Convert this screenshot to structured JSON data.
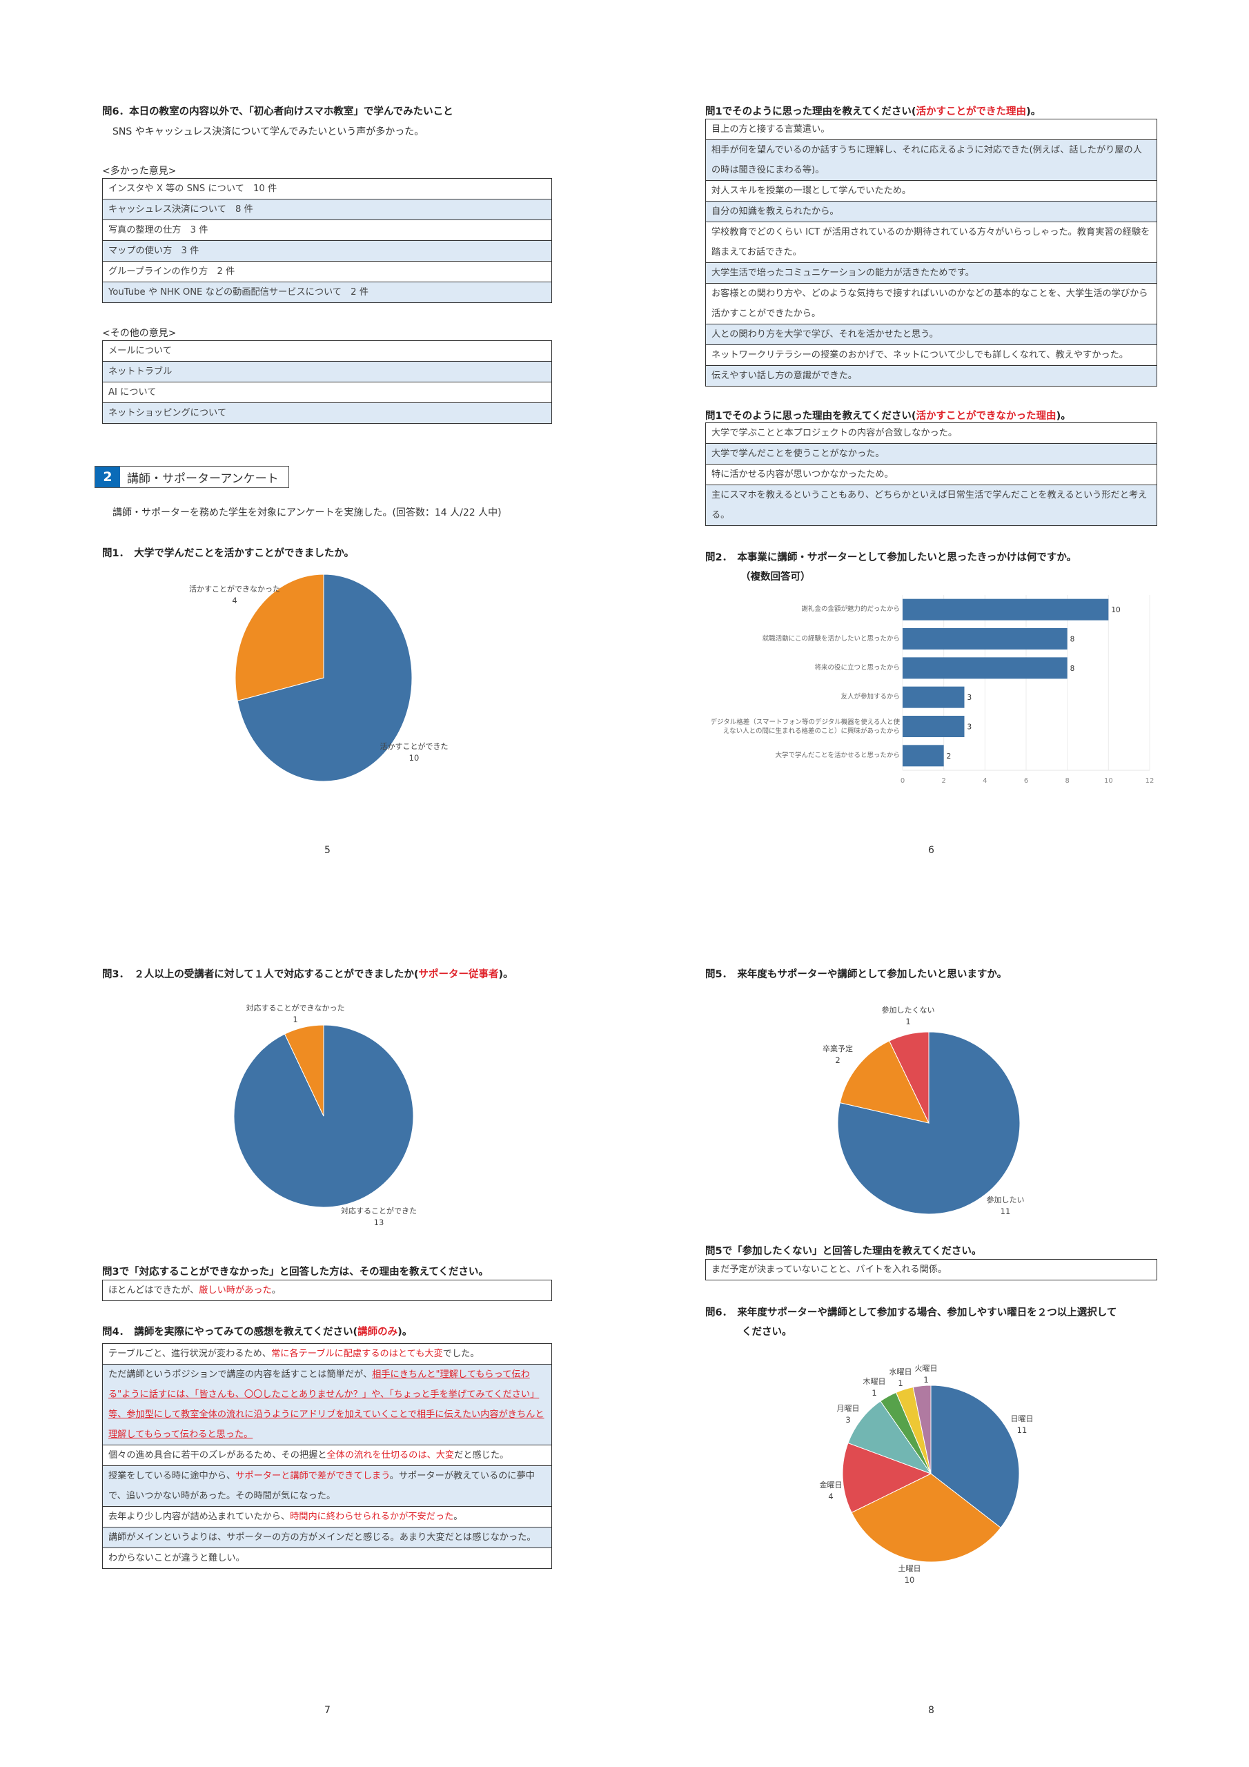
{
  "page5": {
    "q6_title": "問6．本日の教室の内容以外で、「初心者向けスマホ教室」で学んでみたいこと",
    "q6_summary": "SNS やキャッシュレス決済について学んでみたいという声が多かった。",
    "many_label": "<多かった意見>",
    "many": [
      "インスタや X 等の SNS について　10 件",
      "キャッシュレス決済について　8 件",
      "写真の整理の仕方　3 件",
      "マップの使い方　3 件",
      "グループラインの作り方　2 件",
      "YouTube や NHK ONE などの動画配信サービスについて　2 件"
    ],
    "other_label": "<その他の意見>",
    "other": [
      "メールについて",
      "ネットトラブル",
      "AI について",
      "ネットショッピングについて"
    ],
    "section": {
      "number": "2",
      "title": "講師・サポーターアンケート"
    },
    "intro": "講師・サポーターを務めた学生を対象にアンケートを実施した。(回答数：14 人/22 人中)",
    "q1_title": "問1．　大学で学んだことを活かすことができましたか。",
    "page_number": "5"
  },
  "page6": {
    "yes_title": [
      {
        "t": "問1でそのように思った理由を教えてください("
      },
      {
        "t": "活かすことができた理由",
        "s": "r"
      },
      {
        "t": ")。"
      }
    ],
    "yes_rows": [
      "目上の方と接する言葉遣い。",
      "相手が何を望んでいるのか話すうちに理解し、それに応えるように対応できた(例えば、話したがり屋の人の時は聞き役にまわる等)。",
      "対人スキルを授業の一環として学んでいたため。",
      "自分の知識を教えられたから。",
      "学校教育でどのくらい ICT が活用されているのか期待されている方々がいらっしゃった。教育実習の経験を踏まえてお話できた。",
      "大学生活で培ったコミュニケーションの能力が活きたためです。",
      "お客様との関わり方や、どのような気持ちで接すればいいのかなどの基本的なことを、大学生活の学びから活かすことができたから。",
      "人との関わり方を大学で学び、それを活かせたと思う。",
      "ネットワークリテラシーの授業のおかげで、ネットについて少しでも詳しくなれて、教えやすかった。",
      "伝えやすい話し方の意識ができた。"
    ],
    "no_title": [
      {
        "t": "問1でそのように思った理由を教えてください("
      },
      {
        "t": "活かすことができなかった理由",
        "s": "r"
      },
      {
        "t": ")。"
      }
    ],
    "no_rows": [
      "大学で学ぶことと本プロジェクトの内容が合致しなかった。",
      "大学で学んだことを使うことがなかった。",
      "特に活かせる内容が思いつかなかったため。",
      "主にスマホを教えるということもあり、どちらかといえば日常生活で学んだことを教えるという形だと考える。"
    ],
    "q2_title": "問2．　本事業に講師・サポーターとして参加したいと思ったきっかけは何ですか。",
    "q2_note": "（複数回答可）",
    "page_number": "6"
  },
  "page7": {
    "q3_title": [
      {
        "t": "問3．　２人以上の受講者に対して１人で対応することができましたか("
      },
      {
        "t": "サポーター従事者",
        "s": "r"
      },
      {
        "t": ")。"
      }
    ],
    "q3_reason_title": "問3で「対応することができなかった」と回答した方は、その理由を教えてください。",
    "q3_reason_rows": [
      [
        {
          "t": "ほとんどはできたが、"
        },
        {
          "t": "厳しい時があった",
          "s": "r"
        },
        {
          "t": "。"
        }
      ]
    ],
    "q4_title": [
      {
        "t": "問4．　講師を実際にやってみての感想を教えてください("
      },
      {
        "t": "講師のみ",
        "s": "r"
      },
      {
        "t": ")。"
      }
    ],
    "q4_rows": [
      [
        {
          "t": "テーブルごと、進行状況が変わるため、"
        },
        {
          "t": "常に各テーブルに配慮するのはとても大変",
          "s": "r"
        },
        {
          "t": "でした。"
        }
      ],
      [
        {
          "t": "ただ講師というポジションで講座の内容を話すことは簡単だが、"
        },
        {
          "t": "相手にきちんと\"理解してもらって伝わる\"ように話すには、「皆さんも、〇〇したことありませんか？」や、「ちょっと手を挙げてみてください」等、参加型にして教室全体の流れに沿うようにアドリブを加えていくことで相手に伝えたい内容がきちんと理解してもらって伝わると思った。",
          "s": "ru"
        }
      ],
      [
        {
          "t": "個々の進め具合に若干のズレがあるため、その把握と"
        },
        {
          "t": "全体の流れを仕切るのは、大変",
          "s": "r"
        },
        {
          "t": "だと感じた。"
        }
      ],
      [
        {
          "t": "授業をしている時に途中から、"
        },
        {
          "t": "サポーターと講師で差ができてしまう",
          "s": "r"
        },
        {
          "t": "。サポーターが教えているのに夢中で、追いつかない時があった。その時間が気になった。"
        }
      ],
      [
        {
          "t": "去年より少し内容が詰め込まれていたから、"
        },
        {
          "t": "時間内に終わらせられるかが不安だった",
          "s": "r"
        },
        {
          "t": "。"
        }
      ],
      [
        {
          "t": "講師がメインというよりは、サポーターの方の方がメインだと感じる。あまり大変だとは感じなかった。"
        }
      ],
      [
        {
          "t": "わからないことが違うと難しい。"
        }
      ]
    ],
    "page_number": "7"
  },
  "page8": {
    "q5_title": "問5．　来年度もサポーターや講師として参加したいと思いますか。",
    "q5_reason_title": "問5で「参加したくない」と回答した理由を教えてください。",
    "q5_reason_rows": [
      "まだ予定が決まっていないことと、バイトを入れる関係。"
    ],
    "q6_title_line1": "問6．　来年度サポーターや講師として参加する場合、参加しやすい曜日を２つ以上選択して",
    "q6_title_line2": "ください。",
    "page_number": "8"
  },
  "colors": {
    "blue": "#3f73a6",
    "orange": "#ef8c22",
    "red": "#e04b50",
    "teal": "#72b6b2",
    "green": "#57a24b",
    "yellow": "#edc835",
    "purple": "#b07aa1",
    "table_alt": "#dde9f5",
    "accent_red": "#e0242c"
  },
  "chart_data": [
    {
      "id": "q1",
      "type": "pie",
      "title": "問1．大学で学んだことを活かすことができましたか。",
      "categories": [
        "活かすことができた",
        "活かすことができなかった"
      ],
      "values": [
        10,
        4
      ],
      "colors": [
        "#3f73a6",
        "#ef8c22"
      ]
    },
    {
      "id": "q2",
      "type": "bar",
      "orientation": "horizontal",
      "title": "問2．本事業に講師・サポーターとして参加したいと思ったきっかけは何ですか。（複数回答可）",
      "categories": [
        "謝礼金の金額が魅力的だったから",
        "就職活動にこの経験を活かしたいと思ったから",
        "将来の役に立つと思ったから",
        "友人が参加するから",
        "デジタル格差（スマートフォン等のデジタル機器を使える人と使えない人との間に生まれる格差のこと）に興味があったから",
        "大学で学んだことを活かせると思ったから"
      ],
      "values": [
        10,
        8,
        8,
        3,
        3,
        2
      ],
      "xlim": [
        0,
        12
      ],
      "xticks": [
        0,
        2,
        4,
        6,
        8,
        10,
        12
      ],
      "grid": true,
      "color": "#3f73a6"
    },
    {
      "id": "q3",
      "type": "pie",
      "title": "問3．２人以上の受講者に対して１人で対応することができましたか",
      "categories": [
        "対応することができた",
        "対応することができなかった"
      ],
      "values": [
        13,
        1
      ],
      "colors": [
        "#3f73a6",
        "#ef8c22"
      ]
    },
    {
      "id": "q5",
      "type": "pie",
      "title": "問5．来年度もサポーターや講師として参加したいと思いますか。",
      "categories": [
        "参加したい",
        "卒業予定",
        "参加したくない"
      ],
      "values": [
        11,
        2,
        1
      ],
      "colors": [
        "#3f73a6",
        "#ef8c22",
        "#e04b50"
      ]
    },
    {
      "id": "q6",
      "type": "pie",
      "title": "問6．参加しやすい曜日",
      "categories": [
        "日曜日",
        "土曜日",
        "金曜日",
        "月曜日",
        "木曜日",
        "水曜日",
        "火曜日"
      ],
      "values": [
        11,
        10,
        4,
        3,
        1,
        1,
        1
      ],
      "colors": [
        "#3f73a6",
        "#ef8c22",
        "#e04b50",
        "#72b6b2",
        "#57a24b",
        "#edc835",
        "#b07aa1"
      ]
    }
  ]
}
